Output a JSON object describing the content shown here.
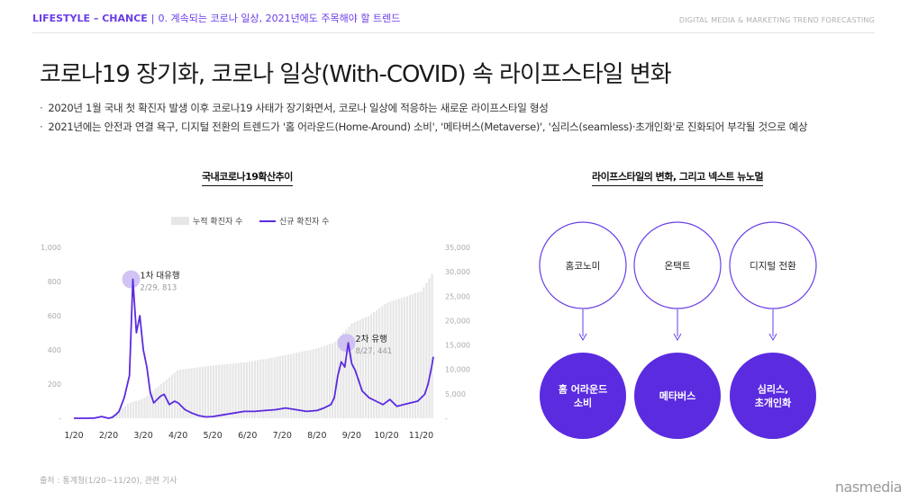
{
  "header": {
    "brand": "LIFESTYLE – CHANCE",
    "separator": "|",
    "section": "0. 계속되는 코로나 일상, 2021년에도 주목해야 할 트렌드",
    "right": "DIGITAL MEDIA & MARKETING TREND FORECASTING"
  },
  "title": "코로나19 장기화, 코로나 일상(With-COVID) 속 라이프스타일 변화",
  "bullets": [
    "2020년 1월 국내 첫 확진자 발생 이후 코로나19 사태가 장기화면서, 코로나 일상에 적응하는 새로운 라이프스타일 형성",
    "2021년에는 안전과 연결 욕구, 디지털 전환의 트렌드가 '홈 어라운드(Home-Around) 소비', '메타버스(Metaverse)', '심리스(seamless)·초개인화'로 진화되어 부각될 것으로 예상"
  ],
  "left_section_title": "국내코로나19확산추이",
  "right_section_title": "라이프스타일의 변화, 그리고 넥스트 뉴노멀",
  "chart_data": {
    "type": "line",
    "legend": [
      "누적 확진자 수",
      "신규 확진자 수"
    ],
    "legend_position": "top",
    "x_ticks": [
      "1/20",
      "2/20",
      "3/20",
      "4/20",
      "5/20",
      "6/20",
      "7/20",
      "8/20",
      "9/20",
      "10/20",
      "11/20"
    ],
    "left_axis": {
      "ticks": [
        "-",
        "200",
        "400",
        "600",
        "800",
        "1,000"
      ],
      "ylim": [
        0,
        1000
      ]
    },
    "right_axis": {
      "ticks": [
        "-",
        "5,000",
        "10,000",
        "15,000",
        "20,000",
        "25,000",
        "30,000",
        "35,000"
      ],
      "ylim": [
        0,
        35000
      ]
    },
    "colors": {
      "new": "#5b2be0",
      "cumulative": "#e6e6e6",
      "peak_marker": "#c9b9f2"
    },
    "series": [
      {
        "name": "신규 확진자 수",
        "axis": "left",
        "x": [
          0,
          0.3,
          0.6,
          0.8,
          1.0,
          1.1,
          1.2,
          1.3,
          1.45,
          1.6,
          1.7,
          1.8,
          1.9,
          2.0,
          2.1,
          2.2,
          2.3,
          2.4,
          2.5,
          2.6,
          2.75,
          2.9,
          3.0,
          3.2,
          3.4,
          3.6,
          3.8,
          4.0,
          4.3,
          4.6,
          4.9,
          5.2,
          5.5,
          5.8,
          6.1,
          6.4,
          6.7,
          7.0,
          7.2,
          7.4,
          7.5,
          7.6,
          7.7,
          7.8,
          7.9,
          8.0,
          8.1,
          8.3,
          8.5,
          8.7,
          8.9,
          9.1,
          9.3,
          9.5,
          9.7,
          9.9,
          10.0,
          10.1,
          10.2,
          10.3,
          10.35
        ],
        "values": [
          0,
          0,
          1,
          10,
          0,
          5,
          20,
          40,
          120,
          250,
          813,
          500,
          600,
          400,
          300,
          150,
          90,
          110,
          130,
          140,
          80,
          100,
          90,
          50,
          30,
          15,
          8,
          10,
          20,
          30,
          40,
          40,
          45,
          50,
          60,
          50,
          40,
          45,
          60,
          80,
          120,
          250,
          330,
          300,
          441,
          320,
          280,
          160,
          120,
          100,
          80,
          110,
          70,
          80,
          90,
          100,
          120,
          140,
          200,
          300,
          360
        ]
      },
      {
        "name": "누적 확진자 수",
        "axis": "right",
        "x": [
          0,
          1.0,
          1.6,
          2.0,
          3.0,
          4.0,
          5.0,
          6.0,
          7.0,
          7.5,
          8.0,
          8.5,
          9.0,
          10.0,
          10.35
        ],
        "values": [
          0,
          30,
          3150,
          4000,
          9900,
          10800,
          11500,
          12800,
          14300,
          15500,
          19400,
          21000,
          23600,
          26000,
          30000
        ]
      }
    ],
    "annotations": [
      {
        "label": "1차 대유행",
        "sub": "2/29, 813",
        "x": 1.7,
        "y": 813
      },
      {
        "label": "2차 유행",
        "sub": "8/27, 441",
        "x": 7.9,
        "y": 441
      }
    ]
  },
  "diagram": {
    "top": [
      "홈코노미",
      "온택트",
      "디지털 전환"
    ],
    "bottom": [
      [
        "홈 어라운드",
        "소비"
      ],
      [
        "메타버스"
      ],
      [
        "심리스,",
        "초개인화"
      ]
    ],
    "colors": {
      "circle_stroke": "#6a3de8",
      "fill": "#5b2be0",
      "arrow": "#6a3de8"
    }
  },
  "source": "출처 : 통계청(1/20~11/20), 관련 기사",
  "logo": "nasmedia"
}
